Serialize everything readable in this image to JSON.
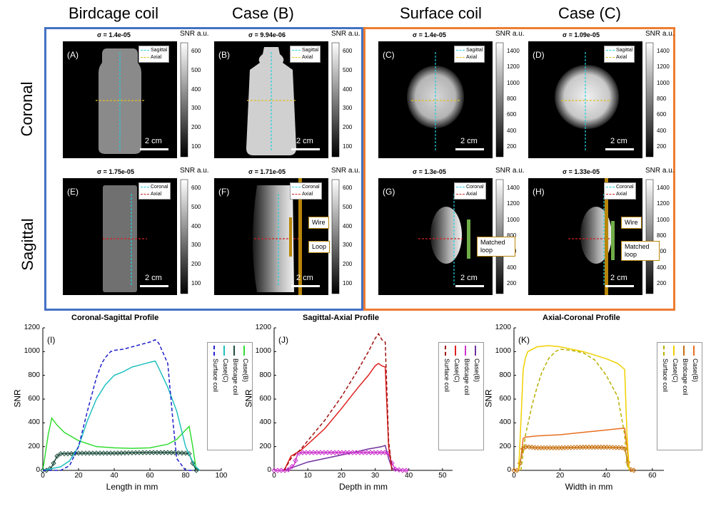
{
  "columns": [
    "Birdcage coil",
    "Case (B)",
    "Surface coil",
    "Case (C)"
  ],
  "rows": [
    "Coronal",
    "Sagittal"
  ],
  "colors": {
    "blue_group": "#4472c4",
    "orange_group": "#ed7d31",
    "wire": "#b8860b",
    "loop_green": "#70ad47"
  },
  "panels": [
    {
      "letter": "(A)",
      "sigma": "σ = 1.4e-05",
      "snr_label": "SNR a.u.",
      "ticks": [
        "600",
        "500",
        "400",
        "300",
        "200",
        "100"
      ],
      "legend": [
        "Sagittal",
        "Axial"
      ],
      "scale": "2 cm"
    },
    {
      "letter": "(B)",
      "sigma": "σ = 9.94e-06",
      "snr_label": "SNR a.u.",
      "ticks": [
        "600",
        "500",
        "400",
        "300",
        "200",
        "100"
      ],
      "legend": [
        "Sagittal",
        "Axial"
      ],
      "scale": "2 cm"
    },
    {
      "letter": "(C)",
      "sigma": "σ = 1.4e-05",
      "snr_label": "SNR a.u.",
      "ticks": [
        "1400",
        "1200",
        "1000",
        "800",
        "600",
        "400",
        "200"
      ],
      "legend": [
        "Sagittal",
        "Axial"
      ],
      "scale": "2 cm"
    },
    {
      "letter": "(D)",
      "sigma": "σ = 1.09e-05",
      "snr_label": "SNR a.u.",
      "ticks": [
        "1400",
        "1200",
        "1000",
        "800",
        "600",
        "400",
        "200"
      ],
      "legend": [
        "Sagittal",
        "Axial"
      ],
      "scale": "2 cm"
    },
    {
      "letter": "(E)",
      "sigma": "σ = 1.75e-05",
      "snr_label": "SNR a.u.",
      "ticks": [
        "600",
        "500",
        "400",
        "300",
        "200",
        "100"
      ],
      "legend": [
        "Coronal",
        "Axial"
      ],
      "scale": "2 cm"
    },
    {
      "letter": "(F)",
      "sigma": "σ = 1.71e-05",
      "snr_label": "SNR a.u.",
      "ticks": [
        "600",
        "500",
        "400",
        "300",
        "200",
        "100"
      ],
      "legend": [
        "Coronal",
        "Axial"
      ],
      "scale": "2 cm",
      "annotations": [
        "Wire",
        "Loop"
      ]
    },
    {
      "letter": "(G)",
      "sigma": "σ = 1.3e-05",
      "snr_label": "SNR a.u.",
      "ticks": [
        "1400",
        "1200",
        "1000",
        "800",
        "600",
        "400",
        "200"
      ],
      "legend": [
        "Coronal",
        "Axial"
      ],
      "scale": "2 cm",
      "annotations": [
        "Matched loop"
      ]
    },
    {
      "letter": "(H)",
      "sigma": "σ = 1.33e-05",
      "snr_label": "SNR a.u.",
      "ticks": [
        "1400",
        "1200",
        "1000",
        "800",
        "600",
        "400",
        "200"
      ],
      "legend": [
        "Coronal",
        "Axial"
      ],
      "scale": "2 cm",
      "annotations": [
        "Wire",
        "Matched loop"
      ]
    }
  ],
  "chart_data": [
    {
      "type": "line",
      "letter": "(I)",
      "title": "Coronal-Sagittal Profile",
      "xlabel": "Length in mm",
      "ylabel": "SNR",
      "xlim": [
        0,
        100
      ],
      "ylim": [
        0,
        1200
      ],
      "xticks": [
        0,
        20,
        40,
        60,
        80,
        100
      ],
      "yticks": [
        0,
        200,
        400,
        600,
        800,
        1000,
        1200
      ],
      "series": [
        {
          "name": "Case(B)",
          "color": "#33dd33",
          "dash": false,
          "x": [
            0,
            3,
            5,
            8,
            12,
            20,
            30,
            40,
            50,
            60,
            70,
            75,
            80,
            82,
            84,
            86
          ],
          "y": [
            0,
            300,
            440,
            380,
            320,
            250,
            200,
            190,
            185,
            190,
            220,
            260,
            340,
            370,
            200,
            0
          ]
        },
        {
          "name": "Birdcage coil",
          "color": "#1f4e3d",
          "dash": false,
          "marker": "diamond",
          "x": [
            0,
            3,
            5,
            8,
            10,
            15,
            20,
            30,
            40,
            50,
            60,
            70,
            75,
            80,
            82,
            84,
            86
          ],
          "y": [
            0,
            0,
            30,
            120,
            140,
            140,
            145,
            145,
            145,
            148,
            150,
            150,
            148,
            145,
            140,
            60,
            0
          ]
        },
        {
          "name": "Case(C)",
          "color": "#20c0c0",
          "dash": false,
          "x": [
            0,
            10,
            15,
            20,
            25,
            30,
            35,
            40,
            45,
            50,
            55,
            60,
            63,
            65,
            70,
            75,
            80,
            85,
            88
          ],
          "y": [
            0,
            30,
            80,
            200,
            420,
            600,
            720,
            800,
            830,
            870,
            890,
            910,
            920,
            860,
            700,
            500,
            200,
            40,
            0
          ]
        },
        {
          "name": "Surface coil",
          "color": "#1f1fcf",
          "dash": true,
          "x": [
            0,
            10,
            15,
            20,
            25,
            30,
            33,
            35,
            38,
            40,
            45,
            50,
            55,
            60,
            63,
            65,
            70,
            73,
            75,
            80,
            85
          ],
          "y": [
            0,
            0,
            40,
            200,
            500,
            780,
            900,
            950,
            1000,
            1010,
            1020,
            1040,
            1060,
            1080,
            1100,
            1070,
            900,
            400,
            100,
            0,
            0
          ]
        }
      ]
    },
    {
      "type": "line",
      "letter": "(J)",
      "title": "Sagittal-Axial Profile",
      "xlabel": "Depth in mm",
      "ylabel": "SNR",
      "xlim": [
        0,
        53
      ],
      "ylim": [
        0,
        1200
      ],
      "xticks": [
        0,
        10,
        20,
        30,
        40,
        50
      ],
      "yticks": [
        0,
        200,
        400,
        600,
        800,
        1000,
        1200
      ],
      "series": [
        {
          "name": "Case(B)",
          "color": "#7030a0",
          "dash": false,
          "x": [
            3,
            5,
            8,
            10,
            15,
            20,
            25,
            28,
            30,
            32,
            33,
            34,
            35,
            36
          ],
          "y": [
            0,
            20,
            50,
            70,
            100,
            130,
            160,
            180,
            190,
            200,
            210,
            100,
            20,
            0
          ]
        },
        {
          "name": "Birdcage coil",
          "color": "#cc33cc",
          "dash": false,
          "marker": "diamond",
          "x": [
            0,
            2,
            4,
            6,
            7,
            8,
            10,
            15,
            20,
            25,
            30,
            33,
            34,
            35,
            36,
            38,
            40
          ],
          "y": [
            0,
            0,
            0,
            50,
            140,
            150,
            150,
            150,
            150,
            150,
            150,
            150,
            140,
            60,
            10,
            0,
            0
          ]
        },
        {
          "name": "Case(C)",
          "color": "#e02020",
          "dash": false,
          "x": [
            3,
            5,
            8,
            10,
            15,
            20,
            25,
            28,
            30,
            31,
            32,
            33,
            34,
            35
          ],
          "y": [
            0,
            120,
            170,
            220,
            350,
            520,
            700,
            800,
            880,
            900,
            880,
            870,
            200,
            0
          ]
        },
        {
          "name": "Surface coil",
          "color": "#a01010",
          "dash": true,
          "x": [
            3,
            5,
            8,
            10,
            15,
            20,
            25,
            28,
            30,
            31,
            32,
            33,
            34,
            35
          ],
          "y": [
            0,
            100,
            180,
            250,
            420,
            620,
            850,
            1000,
            1110,
            1150,
            1100,
            1080,
            250,
            0
          ]
        }
      ]
    },
    {
      "type": "line",
      "letter": "(K)",
      "title": "Axial-Coronal Profile",
      "xlabel": "Width in mm",
      "ylabel": "SNR",
      "xlim": [
        0,
        65
      ],
      "ylim": [
        0,
        1200
      ],
      "xticks": [
        0,
        20,
        40,
        60
      ],
      "yticks": [
        0,
        200,
        400,
        600,
        800,
        1000,
        1200
      ],
      "series": [
        {
          "name": "Case(B)",
          "color": "#e87020",
          "dash": false,
          "x": [
            2,
            3,
            4,
            5,
            10,
            20,
            30,
            40,
            45,
            48,
            49,
            50
          ],
          "y": [
            0,
            100,
            270,
            280,
            290,
            300,
            320,
            340,
            350,
            355,
            200,
            0
          ]
        },
        {
          "name": "Birdcage coil",
          "color": "#c87010",
          "dash": false,
          "marker": "diamond",
          "x": [
            0,
            2,
            3,
            4,
            5,
            10,
            20,
            30,
            40,
            48,
            49,
            50,
            51,
            52
          ],
          "y": [
            0,
            0,
            100,
            190,
            200,
            190,
            190,
            195,
            195,
            190,
            100,
            20,
            0,
            0
          ]
        },
        {
          "name": "Case(C)",
          "color": "#f0d000",
          "dash": false,
          "x": [
            2,
            3,
            4,
            5,
            6,
            10,
            15,
            20,
            30,
            40,
            45,
            48,
            49,
            50
          ],
          "y": [
            0,
            400,
            850,
            950,
            1000,
            1040,
            1050,
            1040,
            1000,
            940,
            900,
            850,
            300,
            0
          ]
        },
        {
          "name": "Surface coil",
          "color": "#b8b000",
          "dash": true,
          "x": [
            3,
            5,
            8,
            10,
            12,
            15,
            18,
            20,
            25,
            30,
            35,
            40,
            45,
            48,
            49,
            50
          ],
          "y": [
            0,
            300,
            560,
            700,
            820,
            940,
            1000,
            1020,
            1010,
            990,
            930,
            800,
            620,
            300,
            50,
            0
          ]
        }
      ]
    }
  ]
}
